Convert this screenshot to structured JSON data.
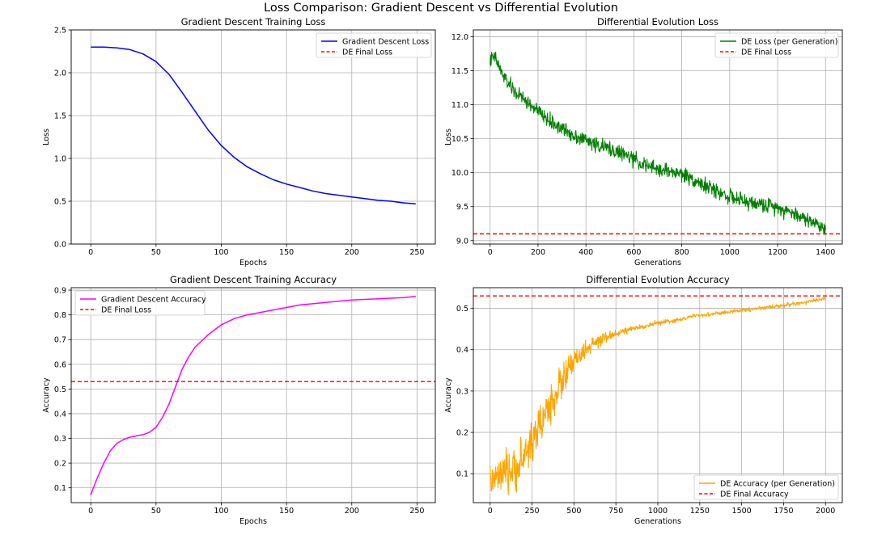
{
  "figure": {
    "suptitle": "Loss Comparison: Gradient Descent vs Differential Evolution"
  },
  "colors": {
    "gd_loss": "#0000ff",
    "de_loss": "#008000",
    "gd_acc": "#ff00ff",
    "de_acc": "#ffa500",
    "de_final": "#ff0000",
    "grid": "#b0b0b0"
  },
  "chart_data": [
    {
      "type": "line",
      "title": "Gradient Descent Training Loss",
      "xlabel": "Epochs",
      "ylabel": "Loss",
      "xlim": [
        -15,
        264
      ],
      "ylim": [
        0,
        2.5
      ],
      "xticks": [
        0,
        50,
        100,
        150,
        200,
        250
      ],
      "yticks": [
        0.0,
        0.5,
        1.0,
        1.5,
        2.0,
        2.5
      ],
      "ytick_labels": [
        "0.0",
        "0.5",
        "1.0",
        "1.5",
        "2.0",
        "2.5"
      ],
      "grid": true,
      "legend_position": "upper right",
      "series": [
        {
          "name": "Gradient Descent Loss",
          "style": "solid",
          "x": [
            0,
            10,
            20,
            30,
            40,
            50,
            60,
            70,
            80,
            90,
            100,
            110,
            120,
            130,
            140,
            150,
            160,
            170,
            180,
            190,
            200,
            210,
            220,
            230,
            240,
            249
          ],
          "y": [
            2.3,
            2.3,
            2.29,
            2.27,
            2.22,
            2.13,
            1.98,
            1.77,
            1.55,
            1.33,
            1.15,
            1.01,
            0.9,
            0.82,
            0.75,
            0.7,
            0.66,
            0.62,
            0.59,
            0.57,
            0.55,
            0.53,
            0.51,
            0.5,
            0.48,
            0.47
          ]
        },
        {
          "name": "DE Final Loss",
          "style": "dashed",
          "hline": 9.1
        }
      ]
    },
    {
      "type": "line",
      "title": "Differential Evolution Loss",
      "xlabel": "Generations",
      "ylabel": "Loss",
      "xlim": [
        -70,
        1470
      ],
      "ylim": [
        8.95,
        12.1
      ],
      "xticks": [
        0,
        200,
        400,
        600,
        800,
        1000,
        1200,
        1400
      ],
      "yticks": [
        9.0,
        9.5,
        10.0,
        10.5,
        11.0,
        11.5,
        12.0
      ],
      "ytick_labels": [
        "9.0",
        "9.5",
        "10.0",
        "10.5",
        "11.0",
        "11.5",
        "12.0"
      ],
      "grid": true,
      "legend_position": "upper right",
      "series": [
        {
          "name": "DE Loss (per Generation)",
          "style": "solid",
          "x": [
            0,
            20,
            50,
            100,
            150,
            200,
            250,
            300,
            350,
            400,
            450,
            500,
            550,
            600,
            650,
            700,
            750,
            800,
            850,
            900,
            950,
            1000,
            1050,
            1100,
            1150,
            1200,
            1250,
            1300,
            1350,
            1400
          ],
          "y": [
            11.65,
            11.7,
            11.45,
            11.2,
            11.05,
            10.9,
            10.75,
            10.65,
            10.55,
            10.48,
            10.4,
            10.35,
            10.28,
            10.2,
            10.1,
            10.05,
            10.02,
            9.98,
            9.9,
            9.8,
            9.72,
            9.65,
            9.58,
            9.55,
            9.52,
            9.5,
            9.42,
            9.35,
            9.27,
            9.18
          ],
          "noise": 0.09
        },
        {
          "name": "DE Final Loss",
          "style": "dashed",
          "hline": 9.1
        }
      ]
    },
    {
      "type": "line",
      "title": "Gradient Descent Training Accuracy",
      "xlabel": "Epochs",
      "ylabel": "Accuracy",
      "xlim": [
        -15,
        264
      ],
      "ylim": [
        0.04,
        0.91
      ],
      "xticks": [
        0,
        50,
        100,
        150,
        200,
        250
      ],
      "yticks": [
        0.1,
        0.2,
        0.3,
        0.4,
        0.5,
        0.6,
        0.7,
        0.8,
        0.9
      ],
      "ytick_labels": [
        "0.1",
        "0.2",
        "0.3",
        "0.4",
        "0.5",
        "0.6",
        "0.7",
        "0.8",
        "0.9"
      ],
      "grid": true,
      "legend_position": "upper left",
      "series": [
        {
          "name": "Gradient Descent Accuracy",
          "style": "solid",
          "x": [
            0,
            2,
            5,
            10,
            15,
            20,
            25,
            30,
            35,
            40,
            45,
            50,
            55,
            60,
            65,
            70,
            75,
            80,
            90,
            100,
            110,
            120,
            130,
            140,
            150,
            160,
            170,
            180,
            190,
            200,
            220,
            240,
            249
          ],
          "y": [
            0.07,
            0.1,
            0.14,
            0.2,
            0.25,
            0.28,
            0.295,
            0.305,
            0.31,
            0.315,
            0.325,
            0.345,
            0.385,
            0.44,
            0.51,
            0.58,
            0.63,
            0.67,
            0.72,
            0.76,
            0.785,
            0.8,
            0.81,
            0.82,
            0.83,
            0.84,
            0.845,
            0.85,
            0.855,
            0.86,
            0.865,
            0.87,
            0.875
          ]
        },
        {
          "name": "DE Final Loss",
          "style": "dashed",
          "hline": 0.53
        }
      ]
    },
    {
      "type": "line",
      "title": "Differential Evolution Accuracy",
      "xlabel": "Generations",
      "ylabel": "Accuracy",
      "xlim": [
        -100,
        2100
      ],
      "ylim": [
        0.03,
        0.55
      ],
      "xticks": [
        0,
        250,
        500,
        750,
        1000,
        1250,
        1500,
        1750,
        2000
      ],
      "yticks": [
        0.1,
        0.2,
        0.3,
        0.4,
        0.5
      ],
      "ytick_labels": [
        "0.1",
        "0.2",
        "0.3",
        "0.4",
        "0.5"
      ],
      "grid": true,
      "legend_position": "lower right",
      "series": [
        {
          "name": "DE Accuracy (per Generation)",
          "style": "solid",
          "x": [
            0,
            50,
            100,
            150,
            200,
            250,
            300,
            350,
            400,
            450,
            500,
            550,
            600,
            650,
            700,
            750,
            800,
            900,
            1000,
            1100,
            1200,
            1300,
            1400,
            1500,
            1600,
            1700,
            1800,
            1900,
            2000
          ],
          "y": [
            0.08,
            0.09,
            0.1,
            0.11,
            0.14,
            0.18,
            0.22,
            0.26,
            0.3,
            0.34,
            0.37,
            0.39,
            0.41,
            0.42,
            0.43,
            0.44,
            0.445,
            0.455,
            0.465,
            0.47,
            0.48,
            0.485,
            0.49,
            0.495,
            0.5,
            0.505,
            0.51,
            0.515,
            0.525
          ],
          "noise": [
            0.035,
            0.035,
            0.04,
            0.04,
            0.045,
            0.045,
            0.04,
            0.04,
            0.04,
            0.035,
            0.025,
            0.02,
            0.015,
            0.012,
            0.01,
            0.008,
            0.006,
            0.005,
            0.005,
            0.004,
            0.004,
            0.004,
            0.004,
            0.004,
            0.004,
            0.004,
            0.004,
            0.004,
            0.004
          ]
        },
        {
          "name": "DE Final Accuracy",
          "style": "dashed",
          "hline": 0.53
        }
      ]
    }
  ]
}
